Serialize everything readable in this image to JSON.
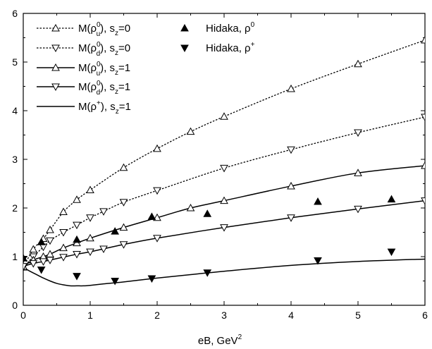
{
  "chart_data": {
    "type": "line",
    "xlabel": "eB, GeV",
    "xlabel_sup": "2",
    "xlim": [
      0,
      6
    ],
    "ylim": [
      0,
      6
    ],
    "xticks": [
      0,
      1,
      2,
      3,
      4,
      5,
      6
    ],
    "yticks": [
      0,
      1,
      2,
      3,
      4,
      5,
      6
    ],
    "xtick_labels": [
      "0",
      "1",
      "2",
      "3",
      "4",
      "5",
      "6"
    ],
    "ytick_labels": [
      "0",
      "1",
      "2",
      "3",
      "4",
      "5",
      "6"
    ],
    "grid": false,
    "legend_placement": "top-left",
    "series": [
      {
        "key": "rho_u_s0",
        "style": "dotted",
        "marker": "triangle-up-open",
        "legend": {
          "main": "M(ρ",
          "sup": "0",
          "sub": "u",
          "tail": "), s",
          "tail_sub": "z",
          "tail_end": "=0"
        },
        "x": [
          0.0,
          0.15,
          0.3,
          0.4,
          0.6,
          0.8,
          1.0,
          1.5,
          2.0,
          2.5,
          3.0,
          4.0,
          5.0,
          6.0
        ],
        "y": [
          0.78,
          1.15,
          1.37,
          1.55,
          1.92,
          2.17,
          2.37,
          2.83,
          3.22,
          3.57,
          3.88,
          4.45,
          4.96,
          5.45
        ]
      },
      {
        "key": "rho_d_s0",
        "style": "dotted",
        "marker": "triangle-down-open",
        "legend": {
          "main": "M(ρ",
          "sup": "0",
          "sub": "d",
          "tail": "), s",
          "tail_sub": "z",
          "tail_end": "=0"
        },
        "x": [
          0.0,
          0.15,
          0.3,
          0.4,
          0.6,
          0.8,
          1.0,
          1.2,
          1.5,
          2.0,
          3.0,
          4.0,
          5.0,
          6.0
        ],
        "y": [
          0.78,
          1.0,
          1.2,
          1.33,
          1.5,
          1.65,
          1.8,
          1.93,
          2.12,
          2.36,
          2.82,
          3.2,
          3.55,
          3.87
        ]
      },
      {
        "key": "rho_u_s1",
        "style": "solid",
        "marker": "triangle-up-open",
        "legend": {
          "main": "M(ρ",
          "sup": "0",
          "sub": "u",
          "tail": "), s",
          "tail_sub": "z",
          "tail_end": "=1"
        },
        "x": [
          0.0,
          0.15,
          0.3,
          0.4,
          0.6,
          0.8,
          1.0,
          1.5,
          2.0,
          2.5,
          3.0,
          4.0,
          5.0,
          6.0
        ],
        "y": [
          0.8,
          0.93,
          1.0,
          1.05,
          1.18,
          1.28,
          1.38,
          1.6,
          1.8,
          2.0,
          2.15,
          2.45,
          2.72,
          2.87
        ]
      },
      {
        "key": "rho_d_s1",
        "style": "solid",
        "marker": "triangle-down-open",
        "legend": {
          "main": "M(ρ",
          "sup": "0",
          "sub": "d",
          "tail": "), s",
          "tail_sub": "z",
          "tail_end": "=1"
        },
        "x": [
          0.0,
          0.15,
          0.3,
          0.4,
          0.6,
          0.8,
          1.0,
          1.2,
          1.5,
          2.0,
          3.0,
          4.0,
          5.0,
          6.0
        ],
        "y": [
          0.8,
          0.86,
          0.9,
          0.93,
          0.99,
          1.05,
          1.1,
          1.16,
          1.25,
          1.38,
          1.6,
          1.8,
          1.98,
          2.15
        ]
      },
      {
        "key": "rho_plus_s1",
        "style": "solid",
        "marker": "none",
        "legend": {
          "main": "M(ρ",
          "sup": "+",
          "sub": "",
          "tail": "), s",
          "tail_sub": "z",
          "tail_end": "=1"
        },
        "x": [
          0.0,
          0.1,
          0.2,
          0.3,
          0.4,
          0.5,
          0.6,
          0.7,
          0.8,
          0.9,
          1.0,
          1.2,
          1.5,
          2.0,
          2.5,
          3.0,
          4.0,
          5.0,
          6.0
        ],
        "y": [
          0.78,
          0.7,
          0.63,
          0.56,
          0.5,
          0.45,
          0.42,
          0.4,
          0.4,
          0.4,
          0.41,
          0.44,
          0.48,
          0.56,
          0.63,
          0.7,
          0.82,
          0.9,
          0.95
        ]
      }
    ],
    "points": [
      {
        "key": "hidaka_rho0",
        "marker": "triangle-up-filled",
        "legend": {
          "main": "Hidaka, ρ",
          "sup": "0"
        },
        "x": [
          0.0,
          0.27,
          0.8,
          1.37,
          1.92,
          2.75,
          4.4,
          5.5
        ],
        "y": [
          0.97,
          1.3,
          1.35,
          1.52,
          1.82,
          1.88,
          2.13,
          2.18
        ]
      },
      {
        "key": "hidaka_rhoplus",
        "marker": "triangle-down-filled",
        "legend": {
          "main": "Hidaka, ρ",
          "sup": "+"
        },
        "x": [
          0.0,
          0.27,
          0.8,
          1.37,
          1.92,
          2.75,
          4.4,
          5.5
        ],
        "y": [
          0.95,
          0.73,
          0.6,
          0.5,
          0.55,
          0.67,
          0.92,
          1.1
        ]
      }
    ]
  }
}
